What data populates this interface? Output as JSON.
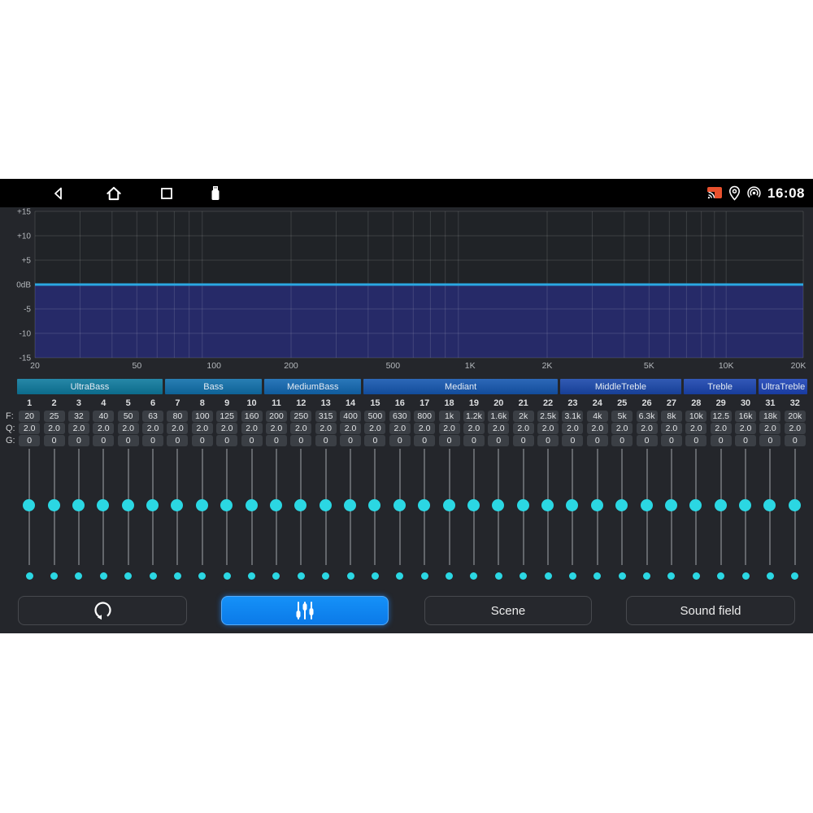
{
  "status_bar": {
    "time": "16:08",
    "nav_icons": [
      "back",
      "home",
      "recents",
      "usb-drive"
    ],
    "right_icons": [
      "cast-active",
      "location",
      "hotspot"
    ]
  },
  "eq_graph": {
    "type": "line",
    "x_scale": "log",
    "x_range_hz": [
      20,
      20000
    ],
    "ylim_db": [
      -15,
      15
    ],
    "curve": {
      "description": "flat equalizer response",
      "gain_db": 0
    },
    "db_ticks": [
      {
        "db": 15,
        "label": "+15"
      },
      {
        "db": 10,
        "label": "+10"
      },
      {
        "db": 5,
        "label": "+5"
      },
      {
        "db": 0,
        "label": "0dB"
      },
      {
        "db": -5,
        "label": "-5"
      },
      {
        "db": -10,
        "label": "-10"
      },
      {
        "db": -15,
        "label": "-15"
      }
    ],
    "freq_ticks": [
      {
        "hz": 20,
        "label": "20"
      },
      {
        "hz": 50,
        "label": "50"
      },
      {
        "hz": 100,
        "label": "100"
      },
      {
        "hz": 200,
        "label": "200"
      },
      {
        "hz": 500,
        "label": "500"
      },
      {
        "hz": 1000,
        "label": "1K"
      },
      {
        "hz": 2000,
        "label": "2K"
      },
      {
        "hz": 5000,
        "label": "5K"
      },
      {
        "hz": 10000,
        "label": "10K"
      },
      {
        "hz": 20000,
        "label": "20K"
      }
    ],
    "colors": {
      "line": "#2ba7e2",
      "fill": "#262a68",
      "plot_bg": "#202327",
      "grid": "rgba(255,255,255,0.13)",
      "tick_text": "#b4b8bc"
    }
  },
  "bands": [
    {
      "label": "UltraBass",
      "channels": 6,
      "color": "#0e7a9e"
    },
    {
      "label": "Bass",
      "channels": 4,
      "color": "#1070ab"
    },
    {
      "label": "MediumBass",
      "channels": 4,
      "color": "#1268b2"
    },
    {
      "label": "Mediant",
      "channels": 8,
      "color": "#1557b0"
    },
    {
      "label": "MiddleTreble",
      "channels": 5,
      "color": "#1a48ab"
    },
    {
      "label": "Treble",
      "channels": 3,
      "color": "#1b45b0"
    },
    {
      "label": "UltraTreble",
      "channels": 2,
      "color": "#1c43b6"
    }
  ],
  "channels": {
    "row_labels": {
      "f": "F:",
      "q": "Q:",
      "g": "G:"
    },
    "numbers": [
      "1",
      "2",
      "3",
      "4",
      "5",
      "6",
      "7",
      "8",
      "9",
      "10",
      "11",
      "12",
      "13",
      "14",
      "15",
      "16",
      "17",
      "18",
      "19",
      "20",
      "21",
      "22",
      "23",
      "24",
      "25",
      "26",
      "27",
      "28",
      "29",
      "30",
      "31",
      "32"
    ],
    "frequencies": [
      "20",
      "25",
      "32",
      "40",
      "50",
      "63",
      "80",
      "100",
      "125",
      "160",
      "200",
      "250",
      "315",
      "400",
      "500",
      "630",
      "800",
      "1k",
      "1.2k",
      "1.6k",
      "2k",
      "2.5k",
      "3.1k",
      "4k",
      "5k",
      "6.3k",
      "8k",
      "10k",
      "12.5",
      "16k",
      "18k",
      "20k"
    ],
    "q_values": [
      "2.0",
      "2.0",
      "2.0",
      "2.0",
      "2.0",
      "2.0",
      "2.0",
      "2.0",
      "2.0",
      "2.0",
      "2.0",
      "2.0",
      "2.0",
      "2.0",
      "2.0",
      "2.0",
      "2.0",
      "2.0",
      "2.0",
      "2.0",
      "2.0",
      "2.0",
      "2.0",
      "2.0",
      "2.0",
      "2.0",
      "2.0",
      "2.0",
      "2.0",
      "2.0",
      "2.0",
      "2.0"
    ],
    "gains": [
      "0",
      "0",
      "0",
      "0",
      "0",
      "0",
      "0",
      "0",
      "0",
      "0",
      "0",
      "0",
      "0",
      "0",
      "0",
      "0",
      "0",
      "0",
      "0",
      "0",
      "0",
      "0",
      "0",
      "0",
      "0",
      "0",
      "0",
      "0",
      "0",
      "0",
      "0",
      "0"
    ],
    "slider_position": "center (0 dB)"
  },
  "buttons": {
    "reset": {
      "icon": "reset-icon"
    },
    "equalizer": {
      "icon": "eq-sliders-icon",
      "active": true,
      "accent": "#0f86f2"
    },
    "scene": {
      "label": "Scene"
    },
    "sound_field": {
      "label": "Sound field"
    }
  },
  "accent_colors": {
    "slider_handle": "#2bd7e3",
    "active_button": "#0f86f2"
  }
}
